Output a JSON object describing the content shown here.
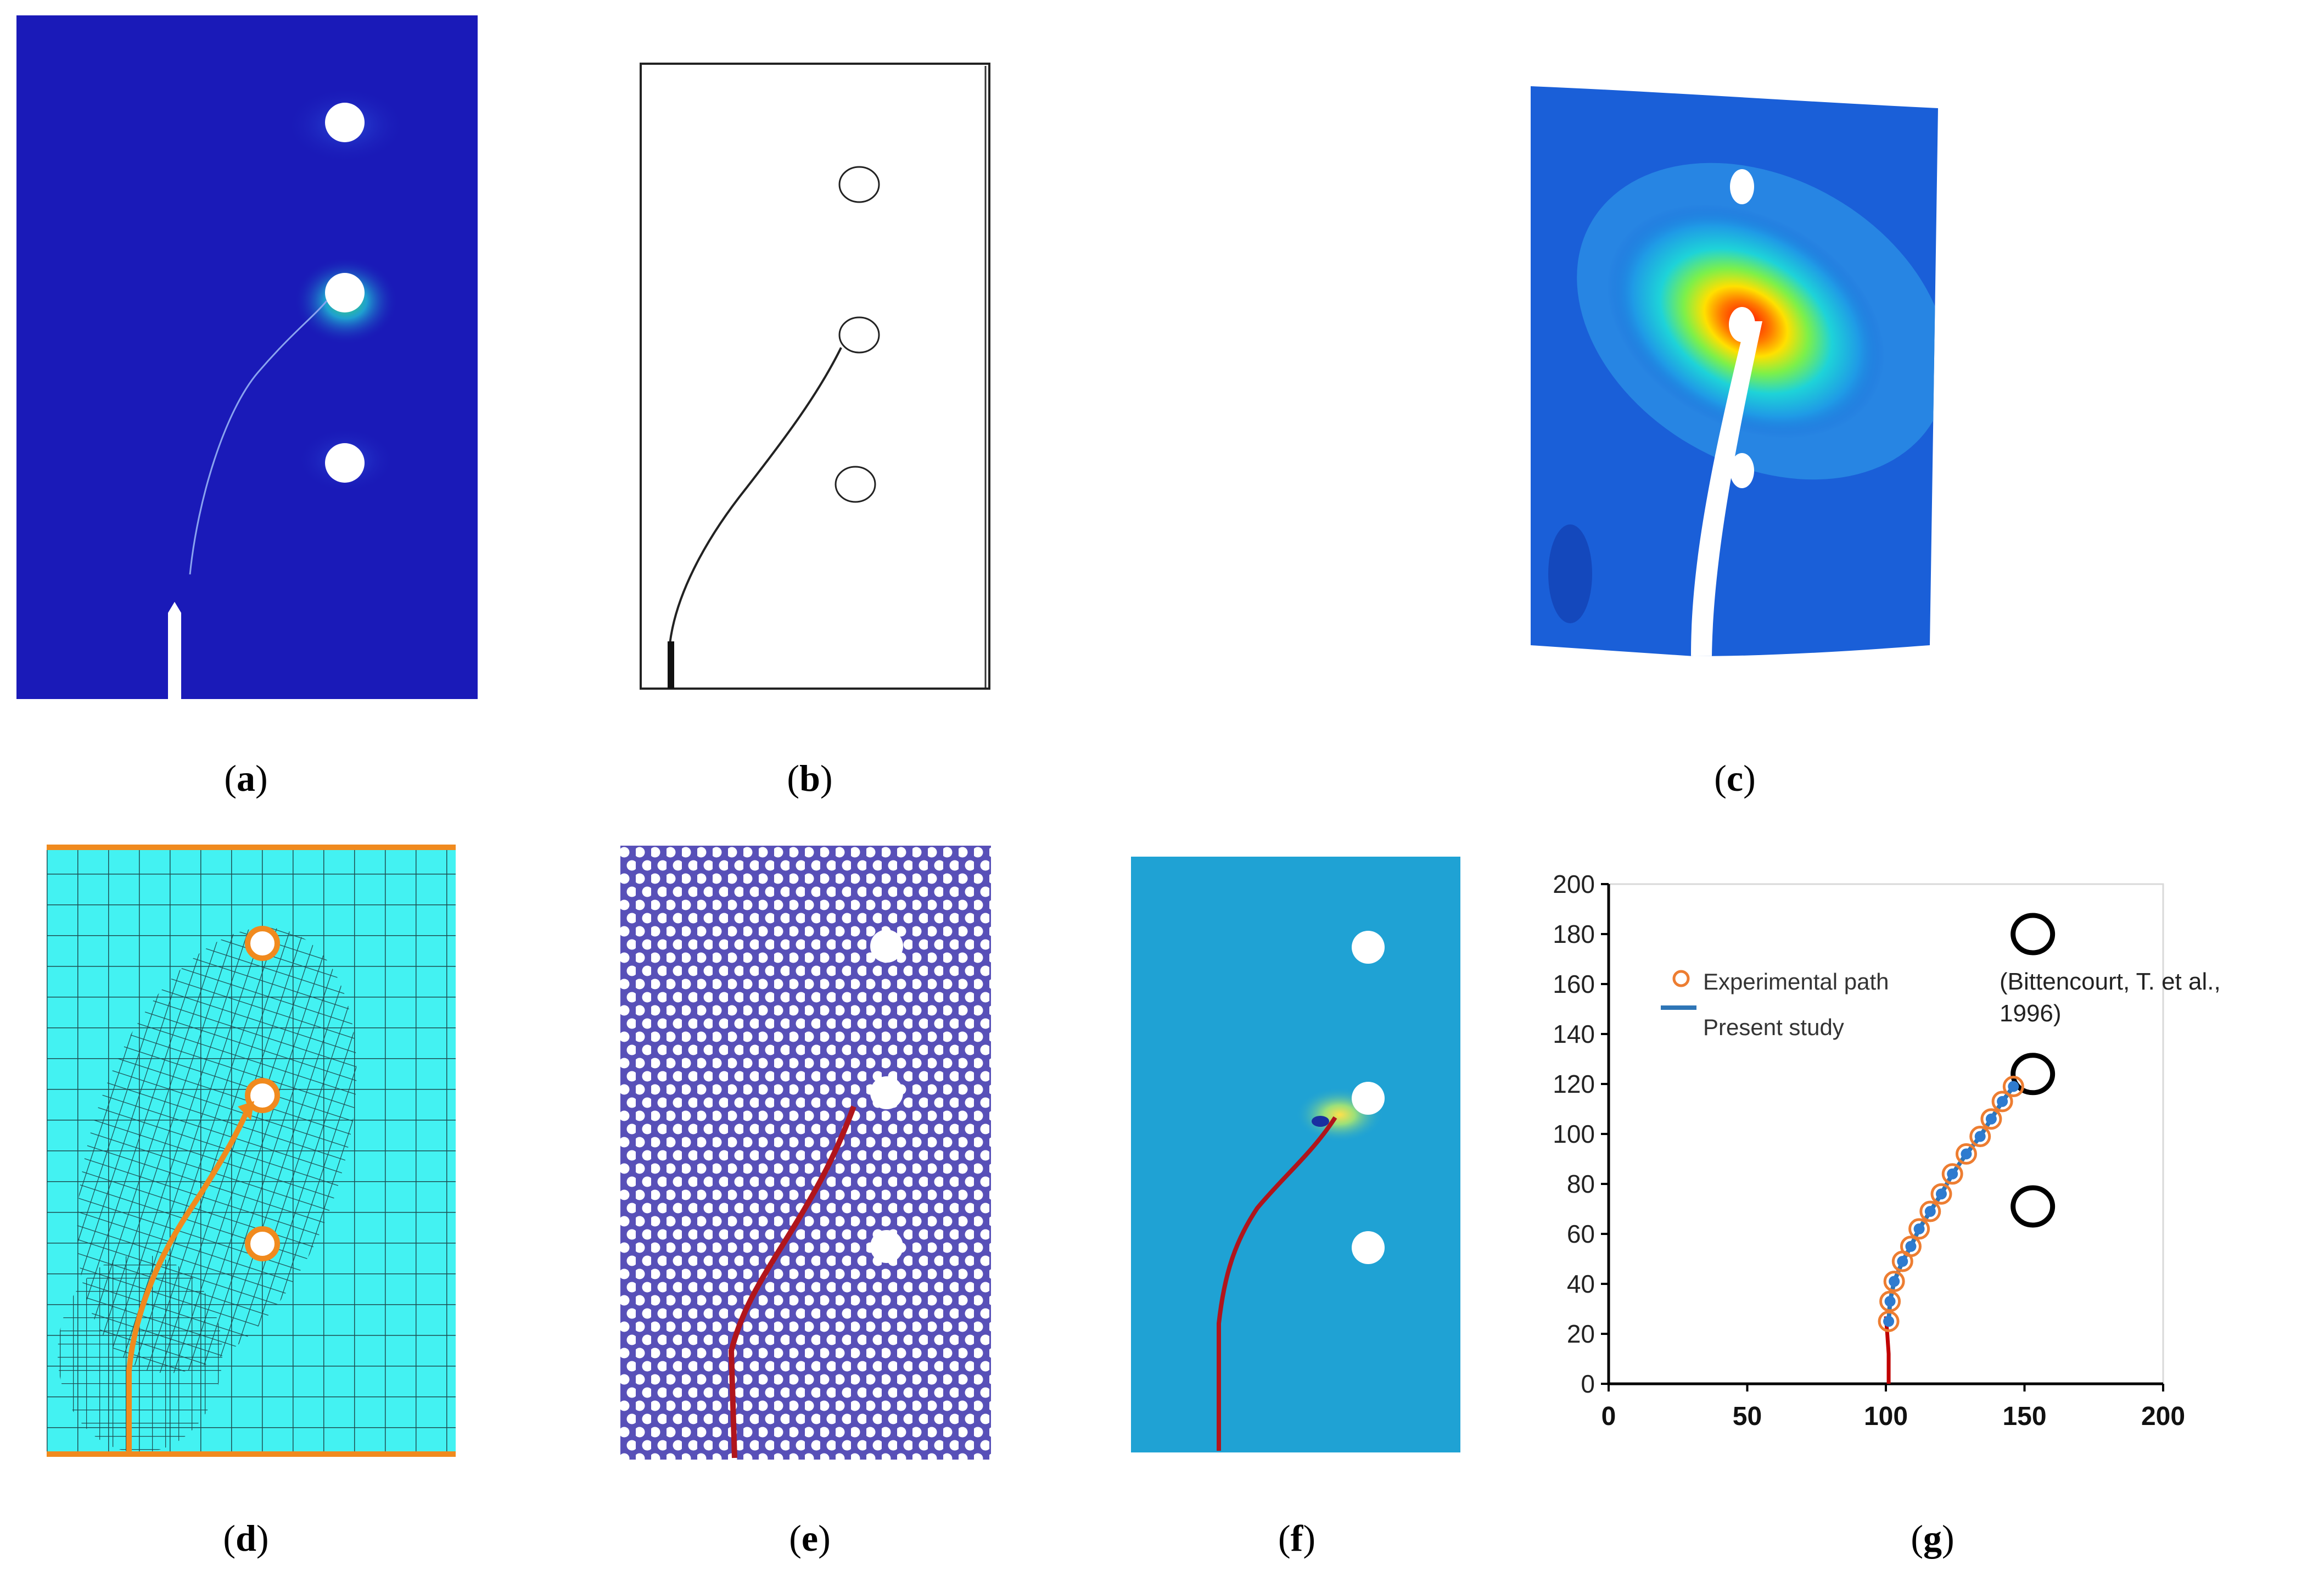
{
  "captions": {
    "a": "a",
    "b": "b",
    "c": "c",
    "d": "d",
    "e": "e",
    "f": "f",
    "g": "g"
  },
  "colors": {
    "deep_blue": "#1a1ab8",
    "cyan_mesh": "#43f2f2",
    "orange": "#f08a1e",
    "crack_red": "#b0151c",
    "light_blue_field": "#1fa2d4",
    "point_blue": "#2e7bcf"
  },
  "chart_data": {
    "type": "scatter",
    "title": "",
    "xlabel": "",
    "ylabel": "",
    "xlim": [
      0,
      200
    ],
    "ylim": [
      0,
      200
    ],
    "x_ticks": [
      "0",
      "50",
      "100",
      "150",
      "200"
    ],
    "y_ticks": [
      "0",
      "20",
      "40",
      "60",
      "80",
      "100",
      "120",
      "140",
      "160",
      "180",
      "200"
    ],
    "legend": [
      {
        "label": "Experimental path",
        "marker": "circle-open",
        "color": "#ed7d31"
      },
      {
        "label": "Present study",
        "marker": "line",
        "color": "#2e75b6"
      }
    ],
    "annotation": {
      "line1": "(Bittencourt, T. et al.,",
      "line2": "1996)"
    },
    "holes": [
      {
        "x": 153,
        "y": 180
      },
      {
        "x": 153,
        "y": 124
      },
      {
        "x": 153,
        "y": 71
      }
    ],
    "series": [
      {
        "name": "Experimental path",
        "x": [
          101,
          101.5,
          103,
          106,
          109,
          112,
          116,
          120,
          124,
          129,
          134,
          138,
          142,
          146
        ],
        "y": [
          25,
          33,
          41,
          49,
          55,
          62,
          69,
          76,
          84,
          92,
          99,
          106,
          113,
          119
        ]
      },
      {
        "name": "Present study",
        "x": [
          101,
          101.5,
          103,
          106,
          109,
          112,
          116,
          120,
          124,
          129,
          134,
          138,
          142,
          146
        ],
        "y": [
          25,
          33,
          41,
          49,
          55,
          62,
          69,
          76,
          84,
          92,
          99,
          106,
          113,
          119
        ]
      },
      {
        "name": "initial crack",
        "x": [
          101,
          101,
          100.5,
          100
        ],
        "y": [
          0,
          12,
          20,
          27
        ]
      }
    ]
  }
}
